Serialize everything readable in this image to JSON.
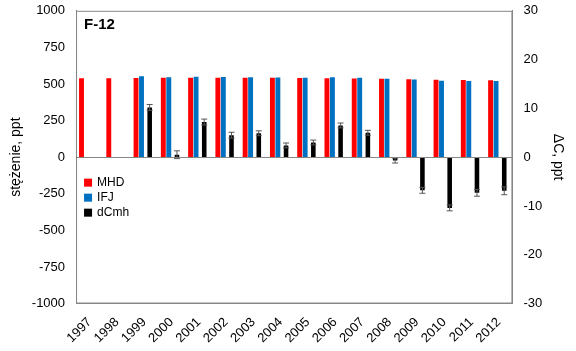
{
  "chart_data": {
    "type": "bar",
    "title": "F-12",
    "y_label": "stężenie, ppt",
    "y2_label": "ΔC, ppt",
    "categories": [
      "1997",
      "1998",
      "1999",
      "2000",
      "2001",
      "2002",
      "2003",
      "2004",
      "2005",
      "2006",
      "2007",
      "2008",
      "2009",
      "2010",
      "2011",
      "2012"
    ],
    "series": [
      {
        "name": "MHD",
        "color": "#ff0000",
        "values": [
          539,
          540,
          541,
          543,
          543,
          543,
          543,
          542,
          541,
          540,
          538,
          535,
          532,
          529,
          527,
          525
        ]
      },
      {
        "name": "IFJ",
        "color": "#0070c0",
        "values": [
          null,
          null,
          552,
          546,
          550,
          547,
          546,
          544,
          543,
          546,
          542,
          536,
          531,
          522,
          520,
          520
        ]
      },
      {
        "name": "dCmh",
        "color": "#000000",
        "axis": "y2",
        "values": [
          null,
          null,
          10.2,
          0.5,
          7.2,
          4.5,
          4.9,
          2.4,
          3.0,
          6.5,
          5.0,
          -0.7,
          -6.8,
          -10.4,
          -7.3,
          -6.9
        ],
        "errors": [
          null,
          null,
          0.6,
          0.8,
          0.6,
          0.6,
          0.5,
          0.5,
          0.5,
          0.5,
          0.5,
          0.5,
          0.6,
          0.6,
          0.7,
          0.8
        ]
      }
    ],
    "ylim": [
      -1000,
      1000
    ],
    "yticks": [
      -1000,
      -750,
      -500,
      -250,
      0,
      250,
      500,
      750,
      1000
    ],
    "y2lim": [
      -30,
      30
    ],
    "y2ticks": [
      -30,
      -20,
      -10,
      0,
      10,
      20,
      30
    ],
    "grid": false,
    "legend": "left"
  }
}
